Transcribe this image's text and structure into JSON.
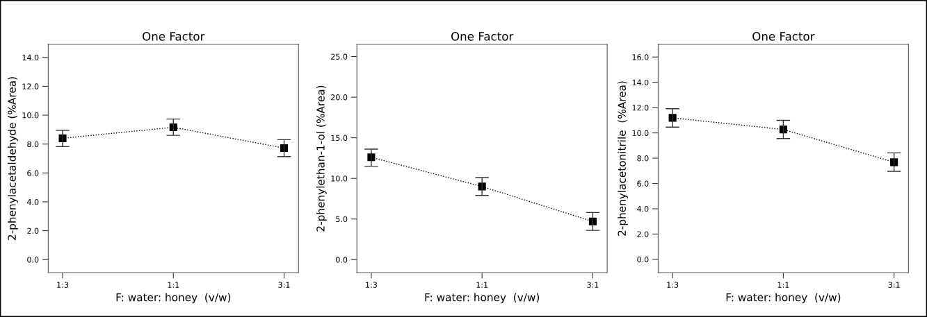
{
  "chart_data": [
    {
      "type": "line",
      "title": "One Factor",
      "xlabel": "F: water: honey  (v/w)",
      "ylabel": "2-phenylacetaldehyde (%Area)",
      "categories": [
        "1:3",
        "1:1",
        "3:1"
      ],
      "series": [
        {
          "color": "#000000",
          "values": [
            8.4,
            9.16,
            7.72
          ],
          "errors": [
            [
              7.82,
              8.96
            ],
            [
              8.6,
              9.73
            ],
            [
              7.13,
              8.3
            ]
          ]
        }
      ],
      "ylim": [
        -0.9,
        14.9
      ],
      "yticks": [
        {
          "value": 0,
          "label": "0.0"
        },
        {
          "value": 2,
          "label": "2.0"
        },
        {
          "value": 4,
          "label": "4.0"
        },
        {
          "value": 6,
          "label": "6.0"
        },
        {
          "value": 8,
          "label": "8.0"
        },
        {
          "value": 10,
          "label": "10.0"
        },
        {
          "value": 12,
          "label": "12.0"
        },
        {
          "value": 14,
          "label": "14.0"
        }
      ],
      "marker": "square",
      "line_style": "dotted",
      "grid": false
    },
    {
      "type": "line",
      "title": "One Factor",
      "xlabel": "F: water: honey  (v/w)",
      "ylabel": "2-phenylethan-1-ol (%Area)",
      "categories": [
        "1:3",
        "1:1",
        "3:1"
      ],
      "series": [
        {
          "color": "#000000",
          "values": [
            12.6,
            9.0,
            4.7
          ],
          "errors": [
            [
              11.5,
              13.6
            ],
            [
              7.9,
              10.1
            ],
            [
              3.6,
              5.8
            ]
          ]
        }
      ],
      "ylim": [
        -1.6,
        26.5
      ],
      "yticks": [
        {
          "value": 0,
          "label": "0.0"
        },
        {
          "value": 5,
          "label": "5.0"
        },
        {
          "value": 10,
          "label": "10.0"
        },
        {
          "value": 15,
          "label": "15.0"
        },
        {
          "value": 20,
          "label": "20.0"
        },
        {
          "value": 25,
          "label": "25.0"
        }
      ],
      "marker": "square",
      "line_style": "dotted",
      "grid": false
    },
    {
      "type": "line",
      "title": "One Factor",
      "xlabel": "F: water: honey  (v/w)",
      "ylabel": "2-phenylacetonitrile  (%Area)",
      "categories": [
        "1:3",
        "1:1",
        "3:1"
      ],
      "series": [
        {
          "color": "#000000",
          "values": [
            11.19,
            10.27,
            7.68
          ],
          "errors": [
            [
              10.46,
              11.91
            ],
            [
              9.55,
              10.99
            ],
            [
              6.96,
              8.42
            ]
          ]
        }
      ],
      "ylim": [
        -1.05,
        17.0
      ],
      "yticks": [
        {
          "value": 0,
          "label": "0.0"
        },
        {
          "value": 2,
          "label": "2.0"
        },
        {
          "value": 4,
          "label": "4.0"
        },
        {
          "value": 6,
          "label": "6.0"
        },
        {
          "value": 8,
          "label": "8.0"
        },
        {
          "value": 10,
          "label": "10.0"
        },
        {
          "value": 12,
          "label": "12.0"
        },
        {
          "value": 14,
          "label": "14.0"
        },
        {
          "value": 16,
          "label": "16.0"
        }
      ],
      "marker": "square",
      "line_style": "dotted",
      "grid": false
    }
  ]
}
